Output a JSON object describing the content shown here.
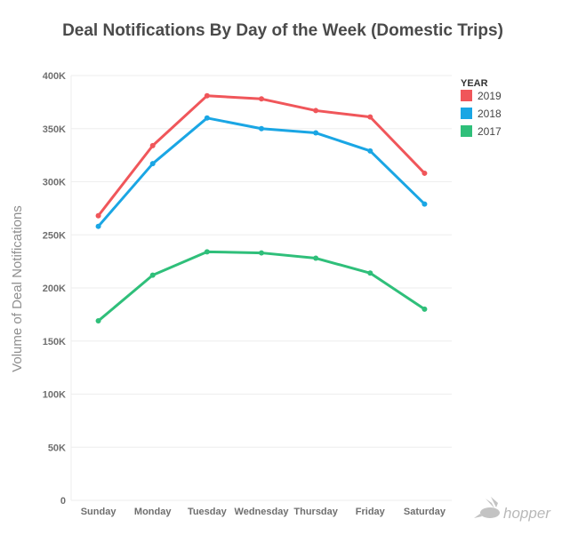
{
  "chart_data": {
    "type": "line",
    "title": "Deal Notifications By Day of the Week (Domestic Trips)",
    "ylabel": "Volume of Deal Notifications",
    "xlabel": "",
    "categories": [
      "Sunday",
      "Monday",
      "Tuesday",
      "Wednesday",
      "Thursday",
      "Friday",
      "Saturday"
    ],
    "ylim": [
      0,
      400000
    ],
    "yticks": [
      0,
      50000,
      100000,
      150000,
      200000,
      250000,
      300000,
      350000,
      400000
    ],
    "ytick_labels": [
      "0",
      "50K",
      "100K",
      "150K",
      "200K",
      "250K",
      "300K",
      "350K",
      "400K"
    ],
    "grid": true,
    "legend_title": "YEAR",
    "legend_position": "top-right",
    "series": [
      {
        "name": "2019",
        "color": "#f0565a",
        "values": [
          268000,
          334000,
          381000,
          378000,
          367000,
          361000,
          308000
        ]
      },
      {
        "name": "2018",
        "color": "#1aa6e4",
        "values": [
          258000,
          317000,
          360000,
          350000,
          346000,
          329000,
          279000
        ]
      },
      {
        "name": "2017",
        "color": "#2fbf7a",
        "values": [
          169000,
          212000,
          234000,
          233000,
          228000,
          214000,
          180000
        ]
      }
    ]
  },
  "brand": {
    "logo_text": "hopper",
    "logo_icon": "rabbit-icon"
  }
}
